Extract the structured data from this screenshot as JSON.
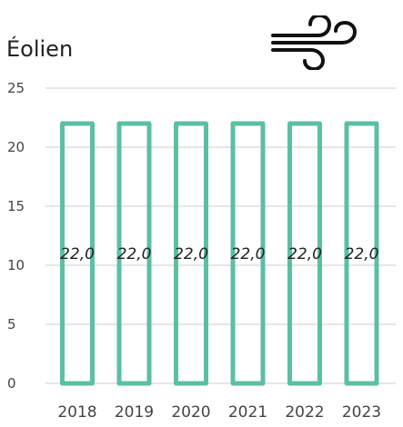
{
  "colors": {
    "bar_stroke": "#5bbfa4",
    "grid": "#cccccc",
    "text": "#222222",
    "icon": "#111111"
  },
  "icon": "wind-icon",
  "chart_data": {
    "type": "bar",
    "title": "Éolien",
    "xlabel": "",
    "ylabel": "",
    "categories": [
      "2018",
      "2019",
      "2020",
      "2021",
      "2022",
      "2023"
    ],
    "series": [
      {
        "values": [
          22.0,
          22.0,
          22.0,
          22.0,
          22.0,
          22.0
        ]
      }
    ],
    "data_labels": [
      "22,0",
      "22,0",
      "22,0",
      "22,0",
      "22,0",
      "22,0"
    ],
    "yticks": [
      0,
      5,
      10,
      15,
      20,
      25
    ],
    "ylim": [
      0,
      25
    ],
    "grid": true,
    "bar_style": "outline"
  }
}
